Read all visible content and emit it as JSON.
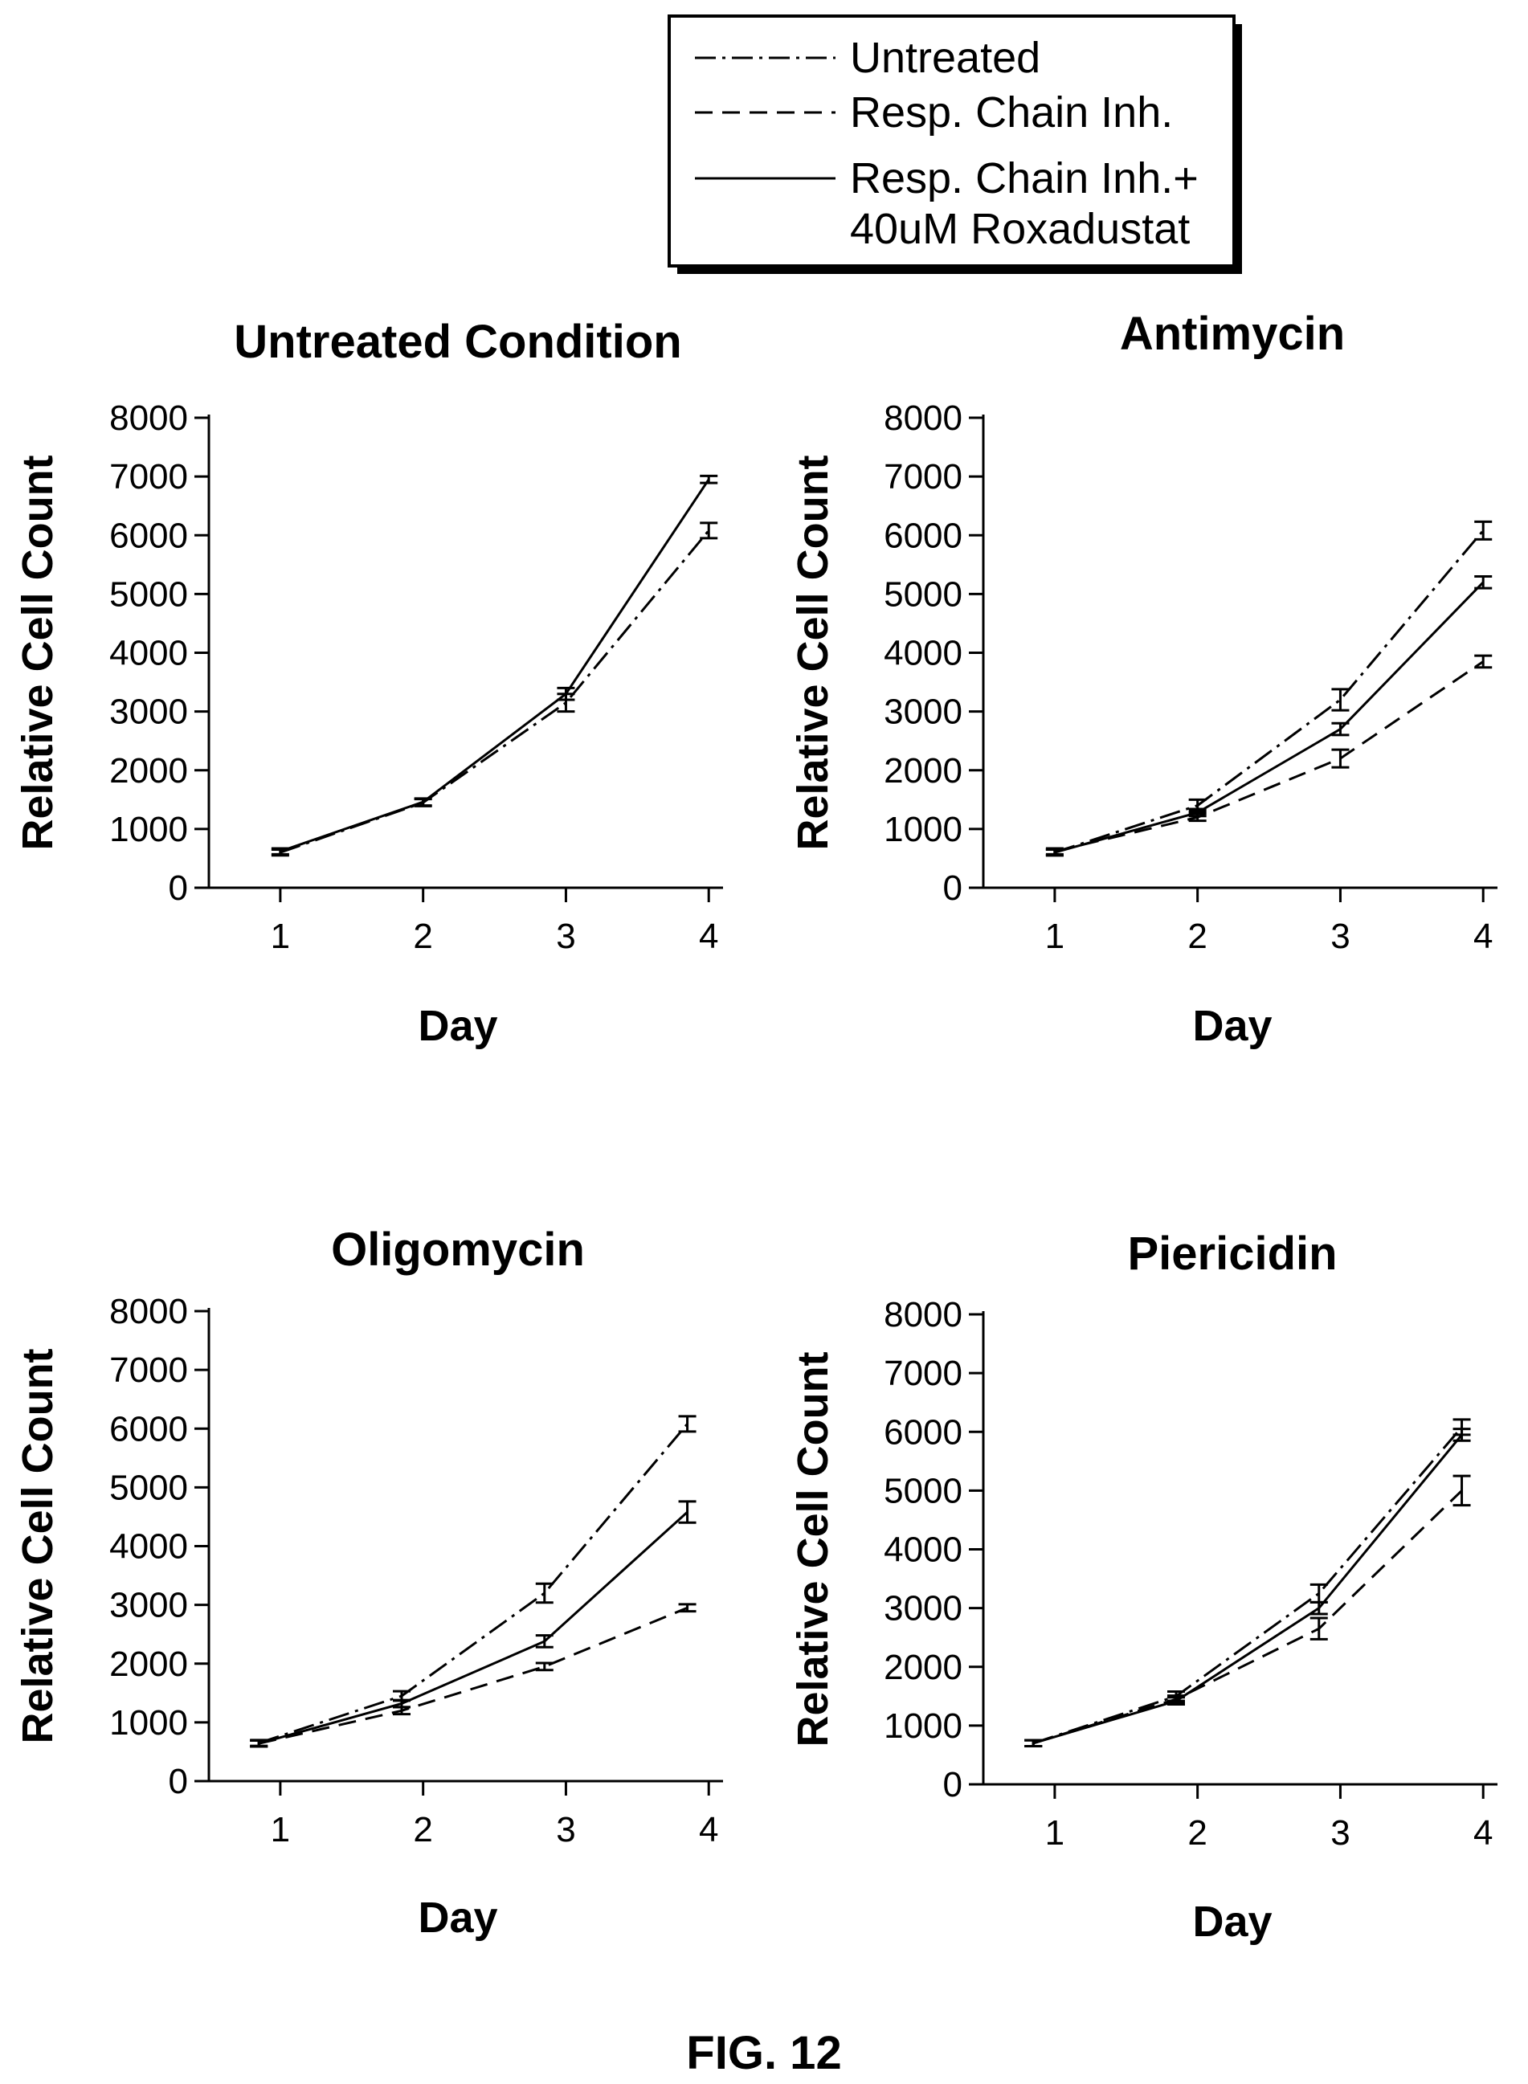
{
  "legend": {
    "entries": [
      {
        "label": "Untreated",
        "style": "dashdot"
      },
      {
        "label": "Resp. Chain Inh.",
        "style": "dashed"
      },
      {
        "label": "Resp. Chain Inh.+",
        "label2": "40uM Roxadustat",
        "style": "solid"
      }
    ]
  },
  "figure_label": "FIG. 12",
  "chart_data": [
    {
      "type": "line",
      "title": "Untreated Condition",
      "xlabel": "Day",
      "ylabel": "Relative Cell Count",
      "x": [
        1,
        2,
        3,
        4
      ],
      "xlim": [
        0.5,
        4.1
      ],
      "ylim": [
        0,
        8000
      ],
      "yticks": [
        0,
        1000,
        2000,
        3000,
        4000,
        5000,
        6000,
        7000,
        8000
      ],
      "xticks": [
        1,
        2,
        3,
        4
      ],
      "series": [
        {
          "style": "dashdot",
          "values": [
            600,
            1450,
            3150,
            6080
          ],
          "errors": [
            50,
            60,
            150,
            130
          ]
        },
        {
          "style": "solid",
          "values": [
            620,
            1460,
            3300,
            6950
          ],
          "errors": [
            50,
            60,
            100,
            60
          ]
        }
      ]
    },
    {
      "type": "line",
      "title": "Antimycin",
      "xlabel": "Day",
      "ylabel": "Relative Cell Count",
      "x": [
        1,
        2,
        3,
        4
      ],
      "xlim": [
        0.5,
        4.1
      ],
      "ylim": [
        0,
        8000
      ],
      "yticks": [
        0,
        1000,
        2000,
        3000,
        4000,
        5000,
        6000,
        7000,
        8000
      ],
      "xticks": [
        1,
        2,
        3,
        4
      ],
      "series": [
        {
          "style": "dashdot",
          "values": [
            600,
            1400,
            3200,
            6080
          ],
          "errors": [
            50,
            100,
            180,
            150
          ]
        },
        {
          "style": "dashed",
          "values": [
            620,
            1200,
            2200,
            3850
          ],
          "errors": [
            50,
            60,
            150,
            100
          ]
        },
        {
          "style": "solid",
          "values": [
            600,
            1280,
            2700,
            5200
          ],
          "errors": [
            50,
            60,
            100,
            100
          ]
        }
      ]
    },
    {
      "type": "line",
      "title": "Oligomycin",
      "xlabel": "Day",
      "ylabel": "Relative Cell Count",
      "x": [
        0.85,
        1.85,
        2.85,
        3.85
      ],
      "xlim": [
        0.5,
        4.1
      ],
      "xticks": [
        1,
        2,
        3,
        4
      ],
      "ylim": [
        0,
        8000
      ],
      "yticks": [
        0,
        1000,
        2000,
        3000,
        4000,
        5000,
        6000,
        7000,
        8000
      ],
      "series": [
        {
          "style": "dashdot",
          "values": [
            650,
            1450,
            3200,
            6080
          ],
          "errors": [
            50,
            80,
            160,
            130
          ]
        },
        {
          "style": "dashed",
          "values": [
            640,
            1200,
            1950,
            2950
          ],
          "errors": [
            50,
            60,
            60,
            60
          ]
        },
        {
          "style": "solid",
          "values": [
            640,
            1320,
            2380,
            4580
          ],
          "errors": [
            50,
            60,
            100,
            180
          ]
        }
      ]
    },
    {
      "type": "line",
      "title": "Piericidin",
      "xlabel": "Day",
      "ylabel": "Relative Cell Count",
      "x": [
        0.85,
        1.85,
        2.85,
        3.85
      ],
      "xlim": [
        0.5,
        4.1
      ],
      "xticks": [
        1,
        2,
        3,
        4
      ],
      "ylim": [
        0,
        8000
      ],
      "yticks": [
        0,
        1000,
        2000,
        3000,
        4000,
        5000,
        6000,
        7000,
        8000
      ],
      "series": [
        {
          "style": "dashdot",
          "values": [
            700,
            1500,
            3250,
            6080
          ],
          "errors": [
            50,
            80,
            150,
            130
          ]
        },
        {
          "style": "dashed",
          "values": [
            700,
            1450,
            2650,
            5000
          ],
          "errors": [
            50,
            60,
            180,
            250
          ]
        },
        {
          "style": "solid",
          "values": [
            700,
            1420,
            3000,
            5950
          ],
          "errors": [
            50,
            60,
            100,
            100
          ]
        }
      ]
    }
  ]
}
